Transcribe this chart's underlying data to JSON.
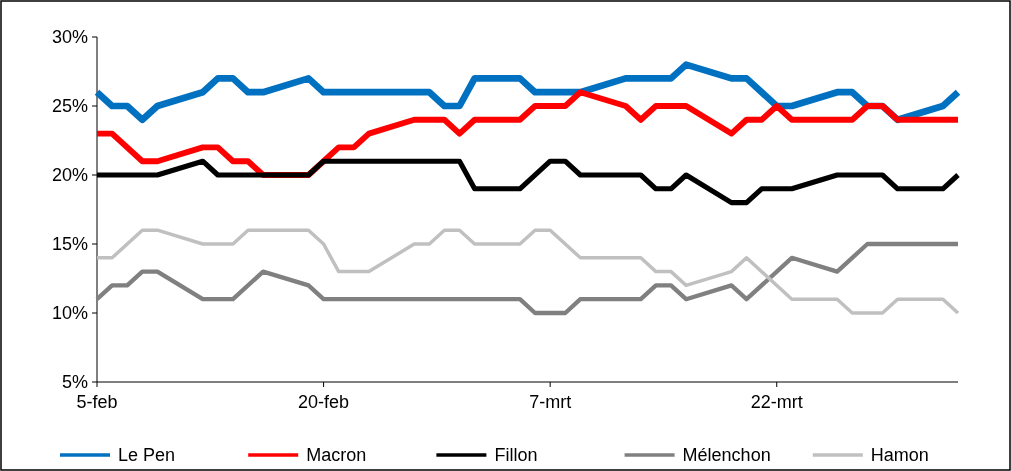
{
  "chart_data": {
    "type": "line",
    "xlim": [
      "--02-05",
      "--04-03"
    ],
    "xticks": [
      {
        "value": "--02-05",
        "label": "5-feb"
      },
      {
        "value": "--02-20",
        "label": "20-feb"
      },
      {
        "value": "--03-07",
        "label": "7-mrt"
      },
      {
        "value": "--03-22",
        "label": "22-mrt"
      }
    ],
    "ylim": [
      5,
      30
    ],
    "yticks": [
      {
        "value": 5,
        "label": "5%"
      },
      {
        "value": 10,
        "label": "10%"
      },
      {
        "value": 15,
        "label": "15%"
      },
      {
        "value": 20,
        "label": "20%"
      },
      {
        "value": 25,
        "label": "25%"
      },
      {
        "value": 30,
        "label": "30%"
      }
    ],
    "grid": false,
    "legend": "bottom",
    "marker": "none",
    "line_style": "solid",
    "series": [
      {
        "name": "Le Pen",
        "color": "#0070c0",
        "x": [
          "--02-05",
          "--02-06",
          "--02-07",
          "--02-08",
          "--02-09",
          "--02-12",
          "--02-13",
          "--02-14",
          "--02-15",
          "--02-16",
          "--02-19",
          "--02-20",
          "--02-27",
          "--02-28",
          "--03-01",
          "--03-02",
          "--03-05",
          "--03-06",
          "--03-09",
          "--03-12",
          "--03-15",
          "--03-16",
          "--03-19",
          "--03-20",
          "--03-22",
          "--03-23",
          "--03-26",
          "--03-27",
          "--03-28",
          "--03-29",
          "--03-30",
          "--04-02",
          "--04-03"
        ],
        "values": [
          26,
          25,
          25,
          24,
          25,
          26,
          27,
          27,
          26,
          26,
          27,
          26,
          26,
          25,
          25,
          27,
          27,
          26,
          26,
          27,
          27,
          28,
          27,
          27,
          25,
          25,
          26,
          26,
          25,
          25,
          24,
          25,
          26
        ]
      },
      {
        "name": "Macron",
        "color": "#ff0000",
        "x": [
          "--02-05",
          "--02-06",
          "--02-08",
          "--02-09",
          "--02-12",
          "--02-13",
          "--02-14",
          "--02-15",
          "--02-16",
          "--02-19",
          "--02-20",
          "--02-21",
          "--02-22",
          "--02-23",
          "--02-26",
          "--02-28",
          "--03-01",
          "--03-02",
          "--03-05",
          "--03-06",
          "--03-08",
          "--03-09",
          "--03-12",
          "--03-13",
          "--03-14",
          "--03-16",
          "--03-19",
          "--03-20",
          "--03-21",
          "--03-22",
          "--03-23",
          "--03-27",
          "--03-28",
          "--03-29",
          "--03-30",
          "--04-03"
        ],
        "values": [
          23,
          23,
          21,
          21,
          22,
          22,
          21,
          21,
          20,
          20,
          21,
          22,
          22,
          23,
          24,
          24,
          23,
          24,
          24,
          25,
          25,
          26,
          25,
          24,
          25,
          25,
          23,
          24,
          24,
          25,
          24,
          24,
          25,
          25,
          24,
          24
        ]
      },
      {
        "name": "Fillon",
        "color": "#000000",
        "x": [
          "--02-05",
          "--02-09",
          "--02-12",
          "--02-13",
          "--02-19",
          "--02-20",
          "--03-01",
          "--03-02",
          "--03-05",
          "--03-07",
          "--03-08",
          "--03-09",
          "--03-13",
          "--03-14",
          "--03-15",
          "--03-16",
          "--03-19",
          "--03-20",
          "--03-21",
          "--03-23",
          "--03-26",
          "--03-29",
          "--03-30",
          "--04-02",
          "--04-03"
        ],
        "values": [
          20,
          20,
          21,
          20,
          20,
          21,
          21,
          19,
          19,
          21,
          21,
          20,
          20,
          19,
          19,
          20,
          18,
          18,
          19,
          19,
          20,
          20,
          19,
          19,
          20
        ]
      },
      {
        "name": "Mélenchon",
        "color": "#808080",
        "x": [
          "--02-05",
          "--02-06",
          "--02-07",
          "--02-08",
          "--02-09",
          "--02-12",
          "--02-14",
          "--02-16",
          "--02-19",
          "--02-20",
          "--03-05",
          "--03-06",
          "--03-08",
          "--03-09",
          "--03-13",
          "--03-14",
          "--03-15",
          "--03-16",
          "--03-19",
          "--03-20",
          "--03-23",
          "--03-26",
          "--03-28",
          "--04-03"
        ],
        "values": [
          11,
          12,
          12,
          13,
          13,
          11,
          11,
          13,
          12,
          11,
          11,
          10,
          10,
          11,
          11,
          12,
          12,
          11,
          12,
          11,
          14,
          13,
          15,
          15
        ]
      },
      {
        "name": "Hamon",
        "color": "#c0c0c0",
        "x": [
          "--02-05",
          "--02-06",
          "--02-08",
          "--02-09",
          "--02-12",
          "--02-14",
          "--02-15",
          "--02-19",
          "--02-20",
          "--02-21",
          "--02-23",
          "--02-26",
          "--02-27",
          "--02-28",
          "--03-01",
          "--03-02",
          "--03-05",
          "--03-06",
          "--03-07",
          "--03-09",
          "--03-13",
          "--03-14",
          "--03-15",
          "--03-16",
          "--03-19",
          "--03-20",
          "--03-23",
          "--03-26",
          "--03-27",
          "--03-29",
          "--03-30",
          "--04-02",
          "--04-03"
        ],
        "values": [
          14,
          14,
          16,
          16,
          15,
          15,
          16,
          16,
          15,
          13,
          13,
          15,
          15,
          16,
          16,
          15,
          15,
          16,
          16,
          14,
          14,
          13,
          13,
          12,
          13,
          14,
          11,
          11,
          10,
          10,
          11,
          11,
          10
        ]
      }
    ]
  }
}
